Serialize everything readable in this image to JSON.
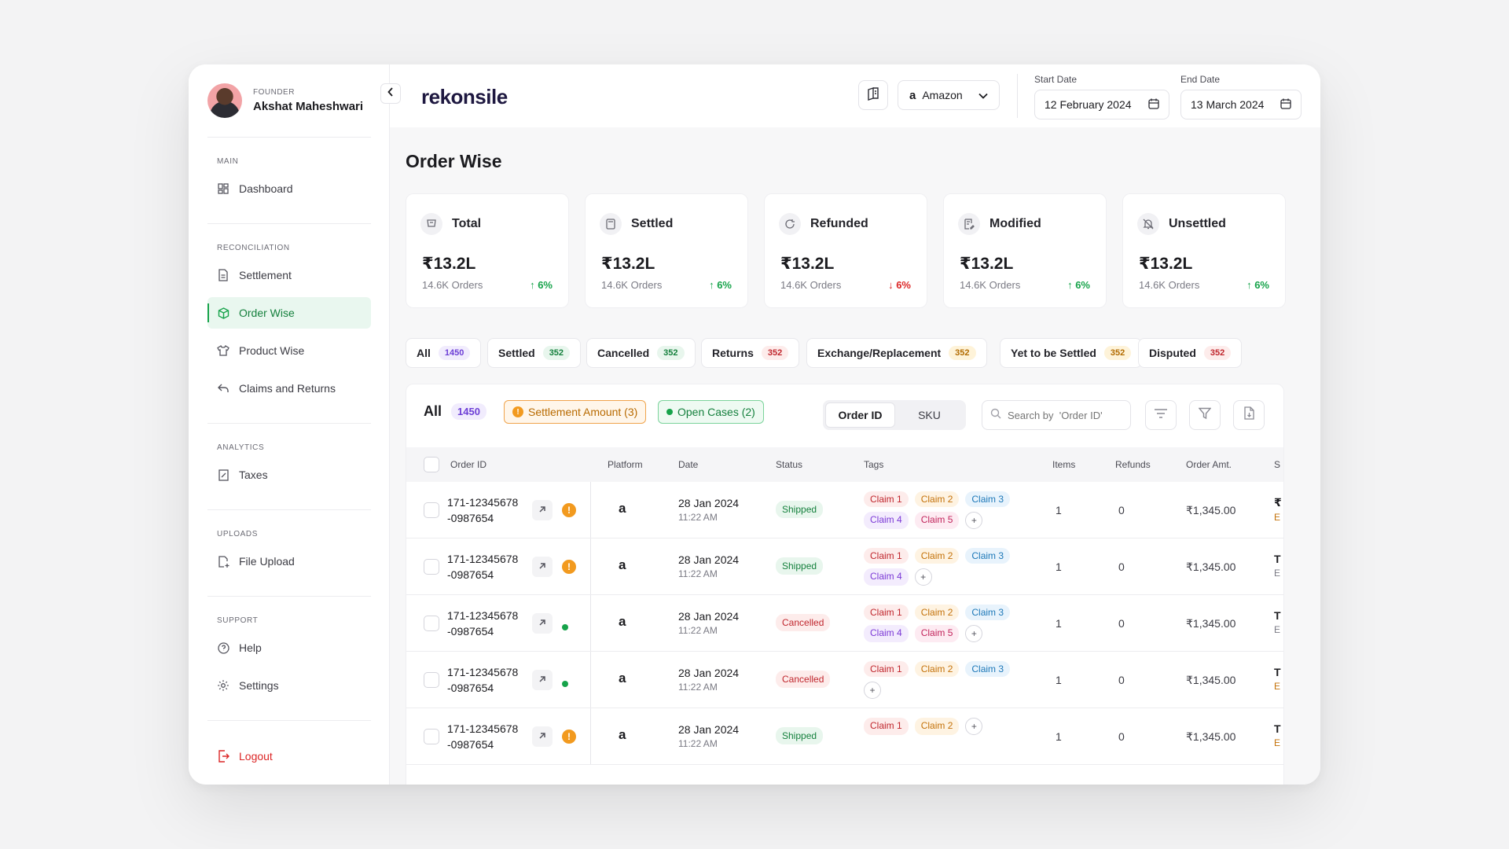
{
  "profile": {
    "role": "FOUNDER",
    "name": "Akshat Maheshwari"
  },
  "sidebar": {
    "sections": [
      {
        "label": "MAIN",
        "items": [
          {
            "label": "Dashboard",
            "icon": "grid-icon"
          }
        ]
      },
      {
        "label": "RECONCILIATION",
        "items": [
          {
            "label": "Settlement",
            "icon": "document-icon"
          },
          {
            "label": "Order Wise",
            "icon": "box-icon",
            "active": true
          },
          {
            "label": "Product Wise",
            "icon": "shirt-icon"
          },
          {
            "label": "Claims and Returns",
            "icon": "return-icon"
          }
        ]
      },
      {
        "label": "ANALYTICS",
        "items": [
          {
            "label": "Taxes",
            "icon": "receipt-icon"
          }
        ]
      },
      {
        "label": "UPLOADS",
        "items": [
          {
            "label": "File Upload",
            "icon": "upload-icon"
          }
        ]
      },
      {
        "label": "SUPPORT",
        "items": [
          {
            "label": "Help",
            "icon": "help-icon"
          },
          {
            "label": "Settings",
            "icon": "gear-icon"
          }
        ]
      }
    ],
    "logout": "Logout"
  },
  "header": {
    "logo": "rekonsile",
    "platform": "Amazon",
    "start_date_label": "Start Date",
    "start_date": "12 February 2024",
    "end_date_label": "End Date",
    "end_date": "13 March 2024"
  },
  "page": {
    "title": "Order Wise"
  },
  "stats": [
    {
      "title": "Total",
      "value": "₹13.2L",
      "orders": "14.6K Orders",
      "trend": "6%",
      "direction": "up"
    },
    {
      "title": "Settled",
      "value": "₹13.2L",
      "orders": "14.6K Orders",
      "trend": "6%",
      "direction": "up"
    },
    {
      "title": "Refunded",
      "value": "₹13.2L",
      "orders": "14.6K Orders",
      "trend": "6%",
      "direction": "down"
    },
    {
      "title": "Modified",
      "value": "₹13.2L",
      "orders": "14.6K Orders",
      "trend": "6%",
      "direction": "up"
    },
    {
      "title": "Unsettled",
      "value": "₹13.2L",
      "orders": "14.6K Orders",
      "trend": "6%",
      "direction": "up"
    }
  ],
  "filter_tabs": [
    {
      "label": "All",
      "count": "1450",
      "color": "purple"
    },
    {
      "label": "Settled",
      "count": "352",
      "color": "green"
    },
    {
      "label": "Cancelled",
      "count": "352",
      "color": "green"
    },
    {
      "label": "Returns",
      "count": "352",
      "color": "red"
    },
    {
      "label": "Exchange/Replacement",
      "count": "352",
      "color": "amber"
    },
    {
      "label": "Yet to be Settled",
      "count": "352",
      "color": "amber"
    },
    {
      "label": "Disputed",
      "count": "352",
      "color": "red"
    }
  ],
  "table": {
    "title": "All",
    "count": "1450",
    "chips": {
      "settlement": "Settlement Amount (3)",
      "open_cases": "Open Cases (2)"
    },
    "toggle": [
      "Order ID",
      "SKU"
    ],
    "search_placeholder": "Search by  'Order ID'",
    "columns": [
      "Order ID",
      "Platform",
      "Date",
      "Status",
      "Tags",
      "Items",
      "Refunds",
      "Order Amt.",
      "S"
    ],
    "rows": [
      {
        "id1": "171-12345678",
        "id2": "-0987654",
        "flag": "warning",
        "date": "28 Jan 2024",
        "time": "11:22 AM",
        "status": "Shipped",
        "tags": [
          "Claim 1",
          "Claim 2",
          "Claim 3",
          "Claim 4",
          "Claim 5"
        ],
        "items": "1",
        "refunds": "0",
        "amount": "₹1,345.00",
        "cut": "₹",
        "cut_sub": "E",
        "cut_sub_color": "#c4720a"
      },
      {
        "id1": "171-12345678",
        "id2": "-0987654",
        "flag": "warning",
        "date": "28 Jan 2024",
        "time": "11:22 AM",
        "status": "Shipped",
        "tags": [
          "Claim 1",
          "Claim 2",
          "Claim 3",
          "Claim 4"
        ],
        "items": "1",
        "refunds": "0",
        "amount": "₹1,345.00",
        "cut": "T",
        "cut_sub": "E",
        "cut_sub_color": "#7a7a84"
      },
      {
        "id1": "171-12345678",
        "id2": "-0987654",
        "flag": "ok",
        "date": "28 Jan 2024",
        "time": "11:22 AM",
        "status": "Cancelled",
        "tags": [
          "Claim 1",
          "Claim 2",
          "Claim 3",
          "Claim 4",
          "Claim 5"
        ],
        "items": "1",
        "refunds": "0",
        "amount": "₹1,345.00",
        "cut": "T",
        "cut_sub": "E",
        "cut_sub_color": "#7a7a84"
      },
      {
        "id1": "171-12345678",
        "id2": "-0987654",
        "flag": "ok",
        "date": "28 Jan 2024",
        "time": "11:22 AM",
        "status": "Cancelled",
        "tags": [
          "Claim 1",
          "Claim 2",
          "Claim 3"
        ],
        "items": "1",
        "refunds": "0",
        "amount": "₹1,345.00",
        "cut": "T",
        "cut_sub": "E",
        "cut_sub_color": "#c4720a"
      },
      {
        "id1": "171-12345678",
        "id2": "-0987654",
        "flag": "warning",
        "date": "28 Jan 2024",
        "time": "11:22 AM",
        "status": "Shipped",
        "tags": [
          "Claim 1",
          "Claim 2"
        ],
        "items": "1",
        "refunds": "0",
        "amount": "₹1,345.00",
        "cut": "T",
        "cut_sub": "E",
        "cut_sub_color": "#c4720a"
      }
    ]
  },
  "colors": {
    "accent_green": "#16a34a",
    "danger": "#dc2626",
    "brand": "#1e1840"
  }
}
